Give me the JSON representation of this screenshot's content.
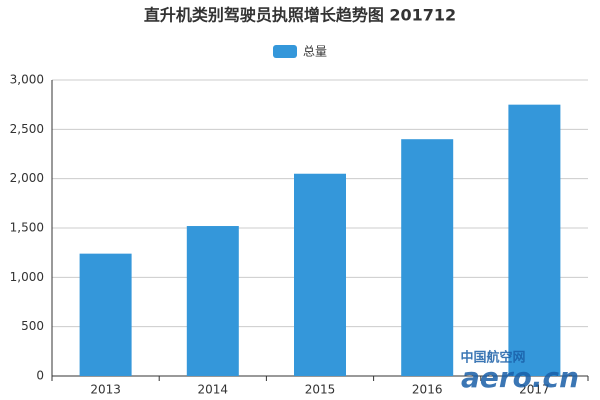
{
  "chart_data": {
    "type": "bar",
    "title": "直升机类别驾驶员执照增长趋势图 201712",
    "categories": [
      "2013",
      "2014",
      "2015",
      "2016",
      "2017"
    ],
    "series": [
      {
        "name": "总量",
        "color": "#3497da",
        "values": [
          1240,
          1520,
          2050,
          2400,
          2750
        ]
      }
    ],
    "ylim": [
      0,
      3000
    ],
    "yticks": [
      0,
      500,
      {
        "value": 1000,
        "label": "1,000"
      },
      {
        "value": 1500,
        "label": "1,500"
      },
      {
        "value": 2000,
        "label": "2,000"
      },
      {
        "value": 2500,
        "label": "2,500"
      },
      {
        "value": 3000,
        "label": "3,000"
      }
    ],
    "grid": true,
    "legend": "top",
    "watermark": [
      "中国航空网",
      "aero.cn"
    ]
  }
}
